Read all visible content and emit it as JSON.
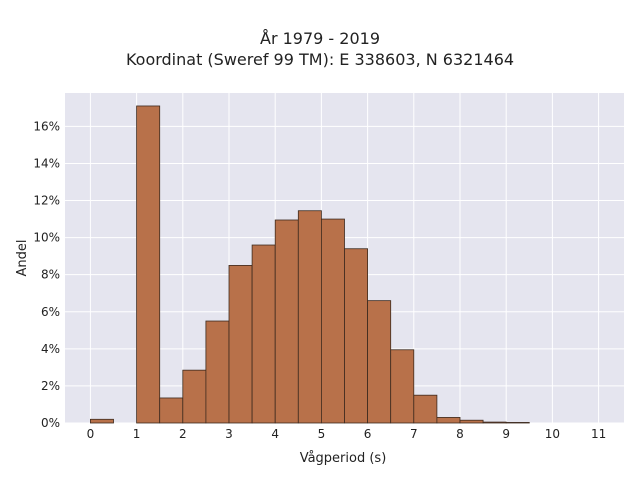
{
  "chart_data": {
    "type": "bar",
    "title_line1": "År 1979 - 2019",
    "title_line2": "Koordinat (Sweref 99 TM): E 338603, N 6321464",
    "xlabel": "Vågperiod (s)",
    "ylabel": "Andel",
    "bin_width": 0.5,
    "bin_starts": [
      0,
      0.5,
      1,
      1.5,
      2,
      2.5,
      3,
      3.5,
      4,
      4.5,
      5,
      5.5,
      6,
      6.5,
      7,
      7.5,
      8,
      8.5,
      9,
      9.5,
      10,
      10.5,
      11
    ],
    "values": [
      0.2,
      0,
      17.1,
      1.35,
      2.85,
      5.5,
      8.5,
      9.6,
      10.95,
      11.45,
      11.0,
      9.4,
      6.6,
      3.95,
      1.5,
      0.3,
      0.15,
      0.05,
      0.03,
      0,
      0,
      0,
      0
    ],
    "xlim": [
      -0.55,
      11.55
    ],
    "ylim": [
      0,
      17.8
    ],
    "x_ticks": [
      0,
      1,
      2,
      3,
      4,
      5,
      6,
      7,
      8,
      9,
      10,
      11
    ],
    "y_ticks": [
      0,
      2,
      4,
      6,
      8,
      10,
      12,
      14,
      16
    ],
    "y_tick_suffix": "%",
    "bar_color": "#b8714a",
    "bar_edge_color": "#3d2a1e",
    "plot_bg": "#e5e5ef",
    "grid": true
  }
}
